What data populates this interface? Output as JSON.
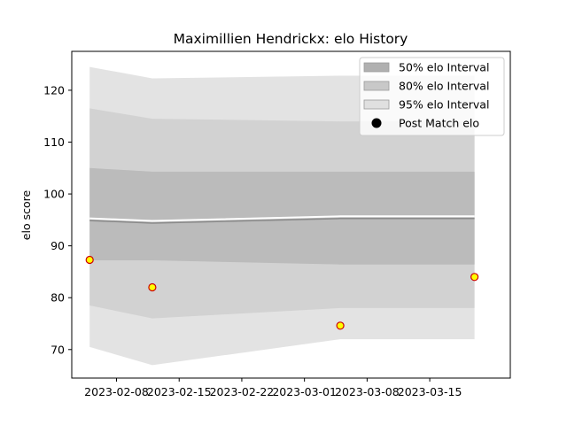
{
  "chart_data": {
    "type": "area",
    "title": "Maximillien Hendrickx: elo History",
    "xlabel": "",
    "ylabel": "elo score",
    "xlim": [
      "2023-02-03",
      "2023-03-24"
    ],
    "ylim": [
      64.5,
      127.5
    ],
    "x_ticks": [
      "2023-02-08",
      "2023-02-15",
      "2023-02-22",
      "2023-03-01",
      "2023-03-08",
      "2023-03-15"
    ],
    "y_ticks": [
      70,
      80,
      90,
      100,
      110,
      120
    ],
    "grid": false,
    "legend_position": "top-right",
    "x": [
      "2023-02-05",
      "2023-02-12",
      "2023-03-05",
      "2023-03-20"
    ],
    "bands": [
      {
        "name": "95% elo Interval",
        "color": "#e3e3e3",
        "lower": [
          70.5,
          67.0,
          72.0,
          72.0
        ],
        "upper": [
          124.5,
          122.3,
          122.8,
          122.8
        ]
      },
      {
        "name": "80% elo Interval",
        "color": "#d2d2d2",
        "lower": [
          78.5,
          76.0,
          78.0,
          78.0
        ],
        "upper": [
          116.5,
          114.5,
          114.0,
          114.0
        ]
      },
      {
        "name": "50% elo Interval",
        "color": "#bbbbbb",
        "lower": [
          87.2,
          87.2,
          86.4,
          86.4
        ],
        "upper": [
          105.0,
          104.3,
          104.3,
          104.3
        ]
      }
    ],
    "series": [
      {
        "kind": "median",
        "values": [
          95.3,
          94.8,
          95.7,
          95.7
        ]
      }
    ],
    "points": {
      "name": "Post Match elo",
      "x": [
        "2023-02-05",
        "2023-02-12",
        "2023-03-05",
        "2023-03-20"
      ],
      "y": [
        87.3,
        82.0,
        74.6,
        84.0
      ],
      "fill": "#ffff00",
      "edge": "#cc0000"
    },
    "legend": [
      {
        "label": "50% elo Interval",
        "swatch": "#b0b0b0"
      },
      {
        "label": "80% elo Interval",
        "swatch": "#c8c8c8"
      },
      {
        "label": "95% elo Interval",
        "swatch": "#e0e0e0"
      },
      {
        "label": "Post Match elo",
        "marker": "dot"
      }
    ]
  }
}
